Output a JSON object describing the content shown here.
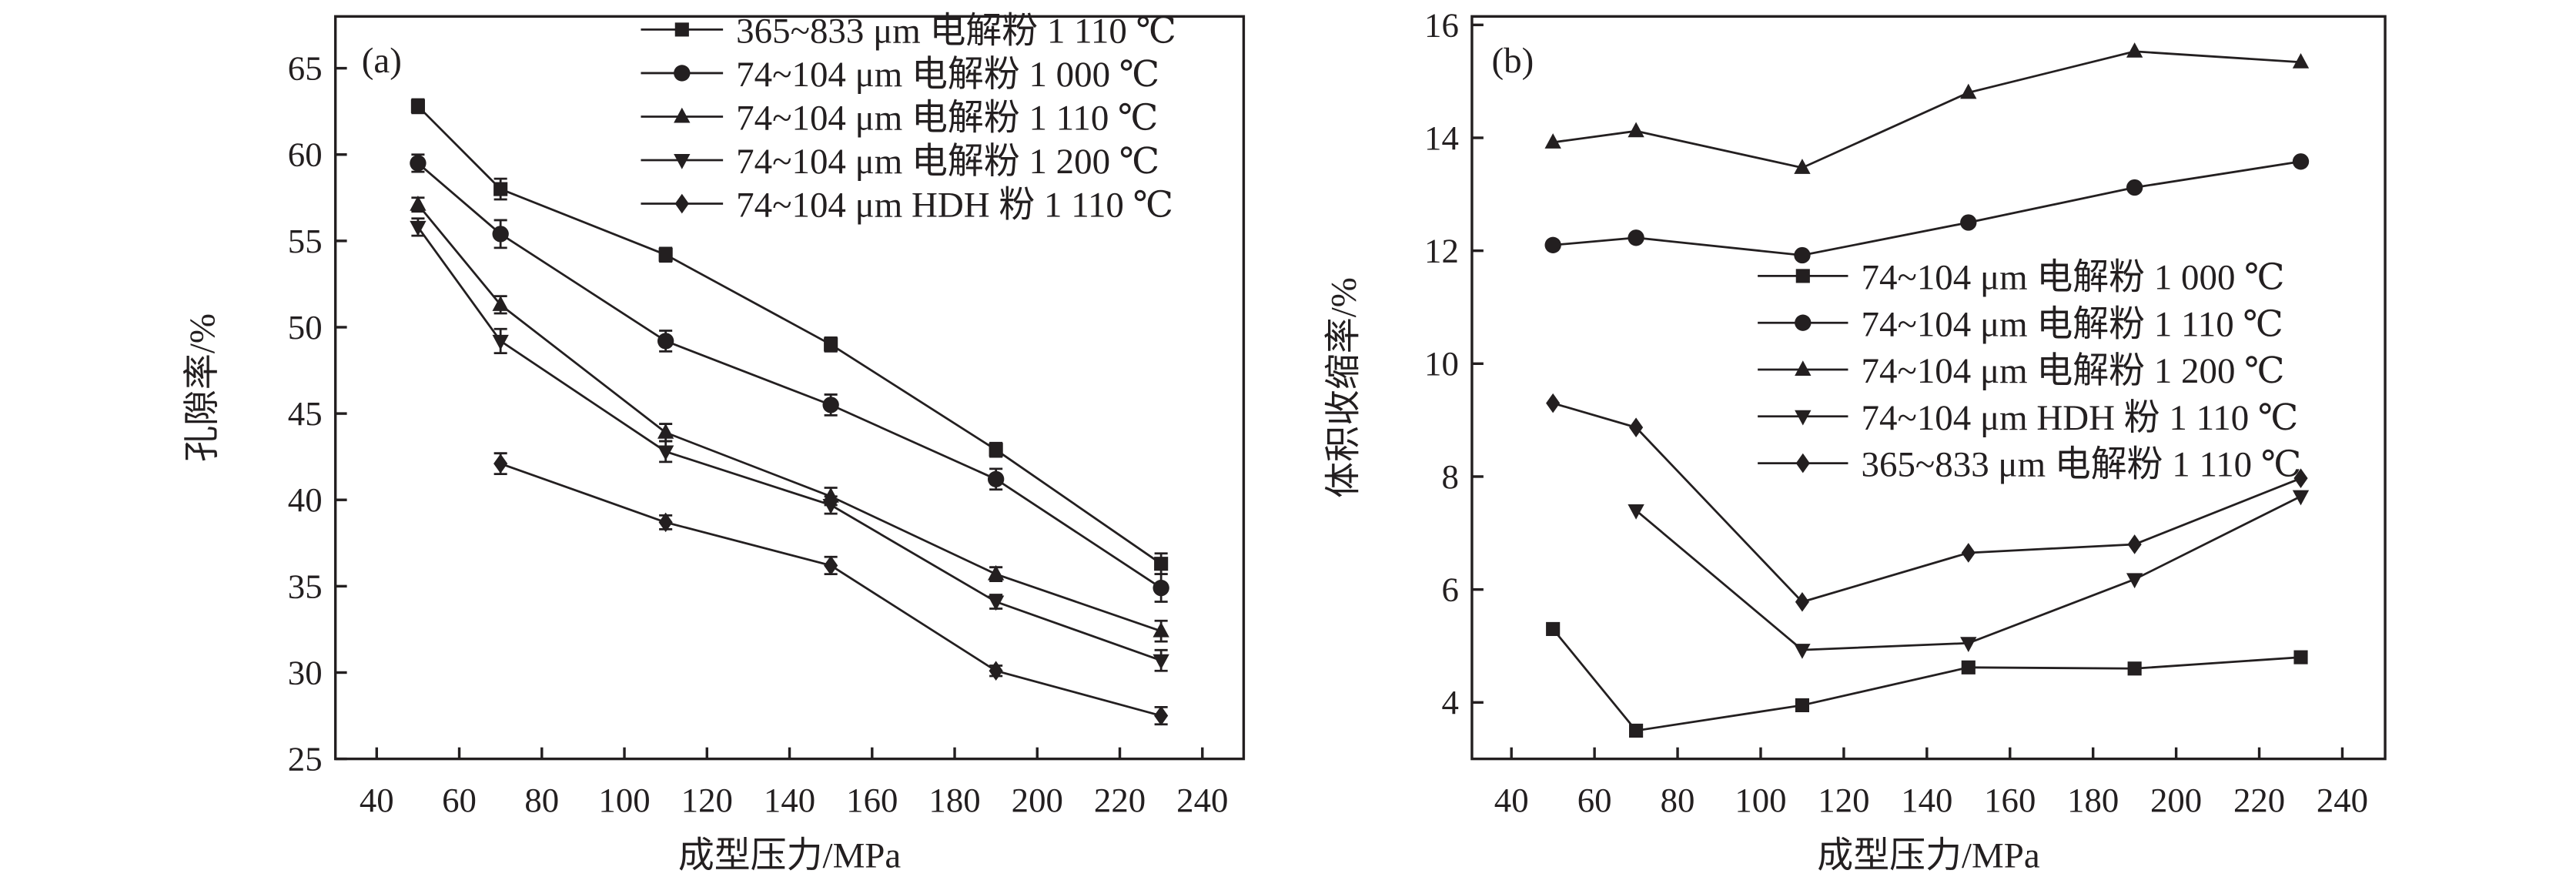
{
  "chart_data": [
    {
      "type": "line",
      "panel_label": "(a)",
      "xlabel": "成型压力/MPa",
      "ylabel": "孔隙率/%",
      "xlim": [
        30,
        250
      ],
      "ylim": [
        25,
        68
      ],
      "xticks": [
        40,
        60,
        80,
        100,
        120,
        140,
        160,
        180,
        200,
        220,
        240
      ],
      "yticks": [
        25,
        30,
        35,
        40,
        45,
        50,
        55,
        60,
        65
      ],
      "grid": false,
      "legend_position": "top-right",
      "error_bars": true,
      "series": [
        {
          "name": "365~833 μm 电解粉 1 110 ℃",
          "marker": "square",
          "x": [
            50,
            70,
            110,
            150,
            190,
            230
          ],
          "y": [
            62.8,
            58.0,
            54.2,
            49.0,
            42.9,
            36.3
          ],
          "yerr": [
            0.4,
            0.6,
            0.4,
            0.4,
            0.4,
            0.6
          ]
        },
        {
          "name": "74~104 μm 电解粉 1 000 ℃",
          "marker": "circle",
          "x": [
            50,
            70,
            110,
            150,
            190,
            230
          ],
          "y": [
            59.5,
            55.4,
            49.2,
            45.5,
            41.2,
            34.9
          ],
          "yerr": [
            0.5,
            0.8,
            0.6,
            0.6,
            0.6,
            0.8
          ]
        },
        {
          "name": "74~104 μm 电解粉 1 110 ℃",
          "marker": "triangle-up",
          "x": [
            50,
            70,
            110,
            150,
            190,
            230
          ],
          "y": [
            57.1,
            51.3,
            43.9,
            40.2,
            35.7,
            32.4
          ],
          "yerr": [
            0.4,
            0.5,
            0.5,
            0.5,
            0.4,
            0.6
          ]
        },
        {
          "name": "74~104 μm 电解粉 1 200 ℃",
          "marker": "triangle-down",
          "x": [
            50,
            70,
            110,
            150,
            190,
            230
          ],
          "y": [
            55.8,
            49.2,
            42.8,
            39.7,
            34.1,
            30.7
          ],
          "yerr": [
            0.5,
            0.7,
            0.6,
            0.5,
            0.4,
            0.6
          ]
        },
        {
          "name": "74~104 μm HDH 粉 1 110 ℃",
          "marker": "diamond",
          "x": [
            70,
            110,
            150,
            190,
            230
          ],
          "y": [
            42.1,
            38.7,
            36.2,
            30.1,
            27.5
          ],
          "yerr": [
            0.6,
            0.4,
            0.5,
            0.3,
            0.5
          ]
        }
      ]
    },
    {
      "type": "line",
      "panel_label": "(b)",
      "xlabel": "成型压力/MPa",
      "ylabel": "体积收缩率/%",
      "xlim": [
        30.5,
        250.3
      ],
      "ylim": [
        3,
        16.15
      ],
      "xticks": [
        40,
        60,
        80,
        100,
        120,
        140,
        160,
        180,
        200,
        220,
        240
      ],
      "yticks": [
        4,
        6,
        8,
        10,
        12,
        14,
        16
      ],
      "grid": false,
      "legend_position": "center-right",
      "error_bars": false,
      "series": [
        {
          "name": "74~104 μm 电解粉 1 000 ℃",
          "marker": "square",
          "x": [
            50,
            70,
            110,
            150,
            190,
            230
          ],
          "y": [
            5.3,
            3.5,
            3.95,
            4.62,
            4.6,
            4.8
          ]
        },
        {
          "name": "74~104 μm 电解粉 1 110 ℃",
          "marker": "circle",
          "x": [
            50,
            70,
            110,
            150,
            190,
            230
          ],
          "y": [
            12.1,
            12.23,
            11.92,
            12.5,
            13.12,
            13.58
          ]
        },
        {
          "name": "74~104 μm 电解粉 1 200 ℃",
          "marker": "triangle-up",
          "x": [
            50,
            70,
            110,
            150,
            190,
            230
          ],
          "y": [
            13.92,
            14.12,
            13.47,
            14.8,
            15.53,
            15.34
          ]
        },
        {
          "name": "74~104 μm HDH 粉 1 110 ℃",
          "marker": "triangle-down",
          "x": [
            70,
            110,
            150,
            190,
            230
          ],
          "y": [
            7.4,
            4.93,
            5.05,
            6.18,
            7.65
          ]
        },
        {
          "name": "365~833 μm 电解粉 1 110 ℃",
          "marker": "diamond",
          "x": [
            50,
            70,
            110,
            150,
            190,
            230
          ],
          "y": [
            9.3,
            8.87,
            5.78,
            6.65,
            6.8,
            7.97
          ]
        }
      ]
    }
  ]
}
